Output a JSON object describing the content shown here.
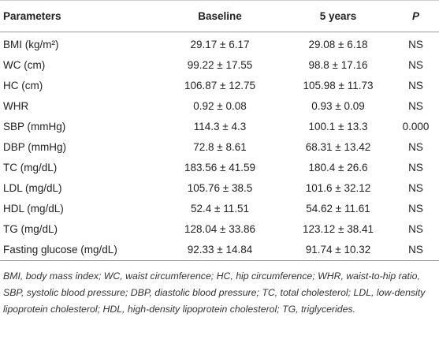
{
  "table": {
    "header": [
      "Parameters",
      "Baseline",
      "5 years",
      "P"
    ],
    "rows": [
      [
        "BMI (kg/m²)",
        "29.17 ± 6.17",
        "29.08 ± 6.18",
        "NS"
      ],
      [
        "WC (cm)",
        "99.22 ± 17.55",
        "98.8 ± 17.16",
        "NS"
      ],
      [
        "HC (cm)",
        "106.87 ± 12.75",
        "105.98 ± 11.73",
        "NS"
      ],
      [
        "WHR",
        "0.92 ± 0.08",
        "0.93 ± 0.09",
        "NS"
      ],
      [
        "SBP (mmHg)",
        "114.3 ± 4.3",
        "100.1 ± 13.3",
        "0.000"
      ],
      [
        "DBP (mmHg)",
        "72.8 ± 8.61",
        "68.31 ± 13.42",
        "NS"
      ],
      [
        "TC (mg/dL)",
        "183.56 ± 41.59",
        "180.4 ± 26.6",
        "NS"
      ],
      [
        "LDL (mg/dL)",
        "105.76 ± 38.5",
        "101.6 ± 32.12",
        "NS"
      ],
      [
        "HDL (mg/dL)",
        "52.4 ± 11.51",
        "54.62 ± 11.61",
        "NS"
      ],
      [
        "TG (mg/dL)",
        "128.04 ± 33.86",
        "123.12 ± 38.41",
        "NS"
      ],
      [
        "Fasting glucose (mg/dL)",
        "92.33 ± 14.84",
        "91.74 ± 10.32",
        "NS"
      ]
    ],
    "footnote": "BMI, body mass index; WC, waist circumference; HC, hip circumference; WHR, waist-to-hip ratio, SBP, systolic blood pressure; DBP, diastolic blood pressure; TC, total cholesterol; LDL, low-density lipoprotein cholesterol; HDL, high-density lipoprotein cholesterol; TG, triglycerides."
  }
}
